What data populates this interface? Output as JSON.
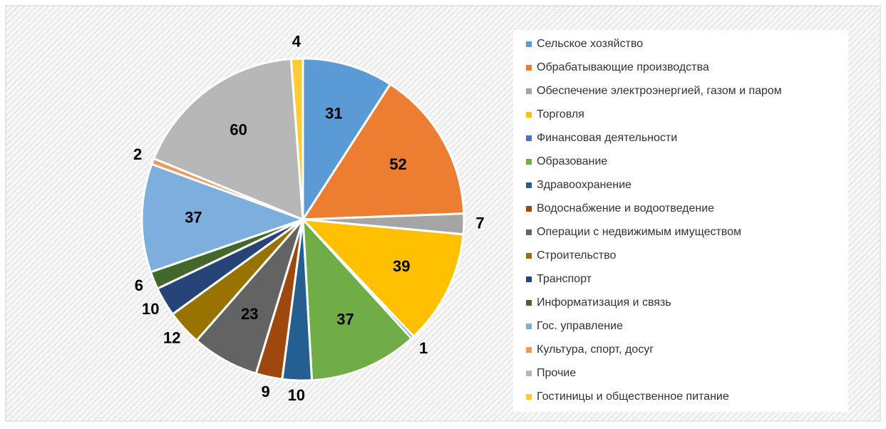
{
  "chart_data": {
    "type": "pie",
    "categories": [
      "Сельское хозяйство",
      "Обрабатывающие производства",
      "Обеспечение электроэнергией, газом и паром",
      "Торговля",
      "Финансовая деятельности",
      "Образование",
      "Здравоохранение",
      "Водоснабжение и водоотведение",
      "Операции с недвижимым имуществом",
      "Строительство",
      "Транспорт",
      "Информатизация и связь",
      "Гос. управление",
      "Культура, спорт, досуг",
      "Прочие",
      "Гостиницы и общественное питание"
    ],
    "values": [
      31,
      52,
      7,
      39,
      1,
      37,
      10,
      9,
      23,
      12,
      10,
      6,
      37,
      2,
      60,
      4
    ],
    "colors": [
      "#5b9bd5",
      "#ed7d31",
      "#a5a5a5",
      "#ffc000",
      "#4472c4",
      "#70ad47",
      "#255e91",
      "#9e480e",
      "#636363",
      "#997300",
      "#264478",
      "#43682b",
      "#7cafdd",
      "#f1975a",
      "#b7b7b7",
      "#ffcd33"
    ],
    "legend": "right"
  }
}
